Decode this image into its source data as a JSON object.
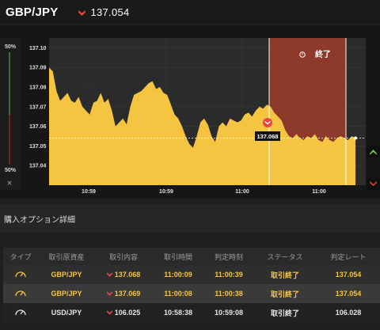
{
  "header": {
    "pair": "GBP/JPY",
    "price": "137.054",
    "price_direction_icon": "down-arrow-icon"
  },
  "chart": {
    "y_ticks": [
      "137.10",
      "137.09",
      "137.08",
      "137.07",
      "137.06",
      "137.05",
      "137.04"
    ],
    "x_ticks": [
      "10:59",
      "10:59",
      "11:00",
      "11:00"
    ],
    "left_gauge_top": "50%",
    "left_gauge_bottom": "50%",
    "close_button": "×",
    "expiry_label": "終了",
    "entry_label": "137.068",
    "colors": {
      "area": "#f5c542",
      "expiry_zone": "#8e3a2a",
      "up": "#7ec850",
      "down": "#e8463c"
    }
  },
  "chart_data": {
    "type": "area",
    "ylim": [
      137.03,
      137.105
    ],
    "y": [
      137.09,
      137.088,
      137.078,
      137.073,
      137.075,
      137.077,
      137.073,
      137.072,
      137.075,
      137.07,
      137.068,
      137.066,
      137.072,
      137.073,
      137.077,
      137.072,
      137.074,
      137.068,
      137.06,
      137.062,
      137.064,
      137.061,
      137.07,
      137.076,
      137.077,
      137.078,
      137.08,
      137.082,
      137.083,
      137.079,
      137.08,
      137.077,
      137.076,
      137.071,
      137.066,
      137.064,
      137.06,
      137.055,
      137.051,
      137.049,
      137.055,
      137.062,
      137.064,
      137.061,
      137.055,
      137.052,
      137.06,
      137.062,
      137.06,
      137.064,
      137.063,
      137.062,
      137.063,
      137.066,
      137.067,
      137.065,
      137.068,
      137.07,
      137.069,
      137.071,
      137.07,
      137.067,
      137.065,
      137.063,
      137.058,
      137.055,
      137.054,
      137.056,
      137.054,
      137.053,
      137.055,
      137.054,
      137.056,
      137.053,
      137.052,
      137.055,
      137.053,
      137.052,
      137.054,
      137.055,
      137.054,
      137.053,
      137.055,
      137.054
    ],
    "current": 137.054,
    "entry": 137.068
  },
  "section": {
    "title": "購入オプション詳細"
  },
  "table": {
    "headers": [
      "タイプ",
      "取引原資産",
      "取引内容",
      "取引時間",
      "判定時刻",
      "ステータス",
      "判定レート"
    ],
    "rows": [
      {
        "type_icon": "gauge-icon",
        "asset": "GBP/JPY",
        "dir_icon": "down-arrow-icon",
        "content": "137.068",
        "trade_time": "11:00:09",
        "judge_time": "11:00:39",
        "status": "取引終了",
        "rate": "137.054"
      },
      {
        "type_icon": "gauge-icon",
        "asset": "GBP/JPY",
        "dir_icon": "down-arrow-icon",
        "content": "137.069",
        "trade_time": "11:00:08",
        "judge_time": "11:00:38",
        "status": "取引終了",
        "rate": "137.054"
      },
      {
        "type_icon": "gauge-icon",
        "asset": "USD/JPY",
        "dir_icon": "down-arrow-icon",
        "content": "106.025",
        "trade_time": "10:58:38",
        "judge_time": "10:59:08",
        "status": "取引終了",
        "rate": "106.028"
      }
    ]
  }
}
